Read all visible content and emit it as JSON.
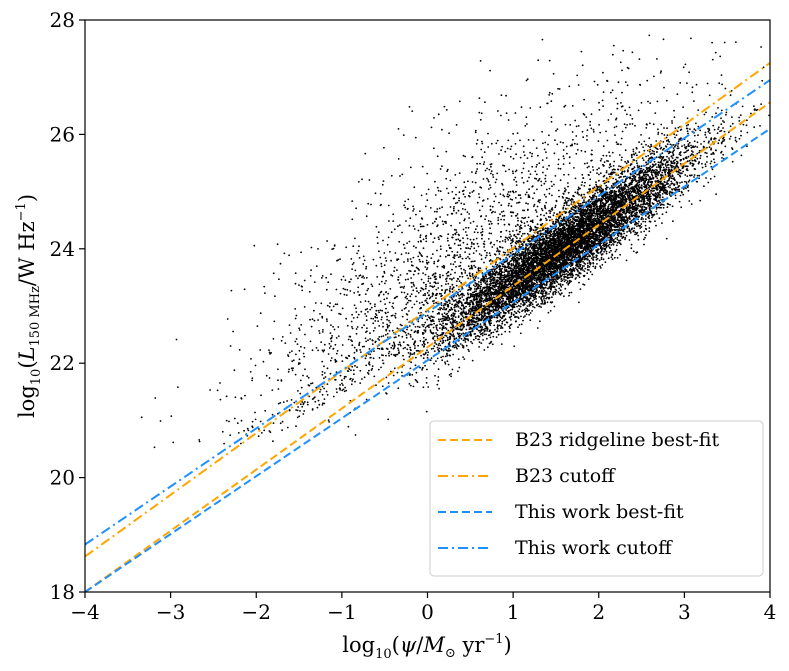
{
  "chart_data": {
    "type": "scatter",
    "title": "",
    "xlabel": "log10(ψ/M⊙ yr−1)",
    "ylabel": "log10(L150 MHz/W Hz−1)",
    "xlim": [
      -4,
      4
    ],
    "ylim": [
      18,
      28
    ],
    "x_ticks": [
      -4,
      -3,
      -2,
      -1,
      0,
      1,
      2,
      3,
      4
    ],
    "x_tick_labels": [
      "−4",
      "−3",
      "−2",
      "−1",
      "0",
      "1",
      "2",
      "3",
      "4"
    ],
    "y_ticks": [
      18,
      20,
      22,
      24,
      26,
      28
    ],
    "y_tick_labels": [
      "18",
      "20",
      "22",
      "24",
      "26",
      "28"
    ],
    "grid": false,
    "legend_position": "bottom-right",
    "scatter": {
      "color": "#000000",
      "description_points": "dense cloud of galaxies following the correlation, with a sparse upper scatter",
      "main_locus": {
        "x_center": 1.6,
        "x_spread": 0.75,
        "slope": 1.06,
        "intercept": 22.32,
        "y_spread": 0.32
      },
      "upper_scatter": {
        "x_center": 0.3,
        "x_spread": 1.3,
        "y_min": 20.5,
        "y_max": 27.8
      }
    },
    "series": [
      {
        "name": "B23 ridgeline best-fit",
        "type": "line",
        "style": "dashed",
        "color": "#ffa500",
        "x": [
          -4,
          4
        ],
        "y": [
          18.0,
          26.56
        ]
      },
      {
        "name": "B23 cutoff",
        "type": "line",
        "style": "dashdot",
        "color": "#ffa500",
        "x": [
          -4,
          4
        ],
        "y": [
          18.62,
          27.25
        ]
      },
      {
        "name": "This work best-fit",
        "type": "line",
        "style": "dashed",
        "color": "#1e90ff",
        "x": [
          -4,
          4
        ],
        "y": [
          18.0,
          26.1
        ]
      },
      {
        "name": "This work cutoff",
        "type": "line",
        "style": "dashdot",
        "color": "#1e90ff",
        "x": [
          -4,
          4
        ],
        "y": [
          18.83,
          26.95
        ]
      }
    ]
  }
}
